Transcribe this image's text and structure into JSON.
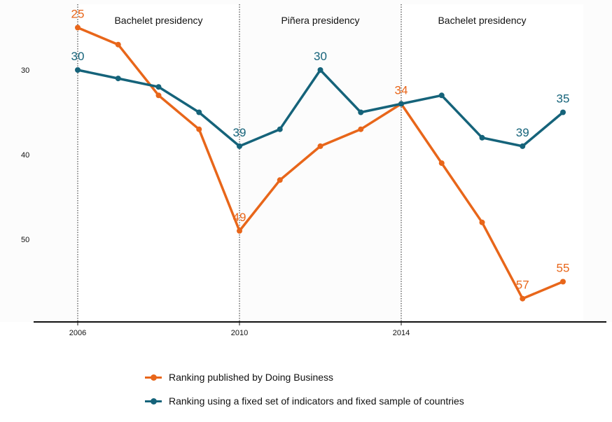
{
  "chart_data": {
    "type": "line",
    "x": [
      2006,
      2007,
      2008,
      2009,
      2010,
      2011,
      2012,
      2013,
      2014,
      2015,
      2016,
      2017,
      2018
    ],
    "xticks": [
      "2006",
      "2010",
      "2014"
    ],
    "yticks": [
      "30",
      "40",
      "50"
    ],
    "ylim": [
      22,
      60
    ],
    "y_inverted": true,
    "periods": [
      {
        "label": "Bachelet presidency",
        "from": 2006,
        "to": 2010,
        "shade": false
      },
      {
        "label": "Piñera presidency",
        "from": 2010,
        "to": 2014,
        "shade": true
      },
      {
        "label": "Bachelet presidency",
        "from": 2014,
        "to": 2018.5,
        "shade": false
      }
    ],
    "series": [
      {
        "name": "Ranking published by Doing Business",
        "color": "#e8661a",
        "values": [
          25,
          27,
          33,
          37,
          49,
          43,
          39,
          37,
          34,
          41,
          48,
          57,
          55
        ],
        "labels": {
          "2006": "25",
          "2010": "49",
          "2014": "34",
          "2017": "57",
          "2018": "55"
        }
      },
      {
        "name": "Ranking using a fixed set of indicators and fixed sample of countries",
        "color": "#15637a",
        "values": [
          30,
          31,
          32,
          35,
          39,
          37,
          30,
          35,
          34,
          33,
          38,
          39,
          35
        ],
        "labels": {
          "2006": "30",
          "2010": "39",
          "2012": "30",
          "2017": "39",
          "2018": "35"
        }
      }
    ]
  }
}
